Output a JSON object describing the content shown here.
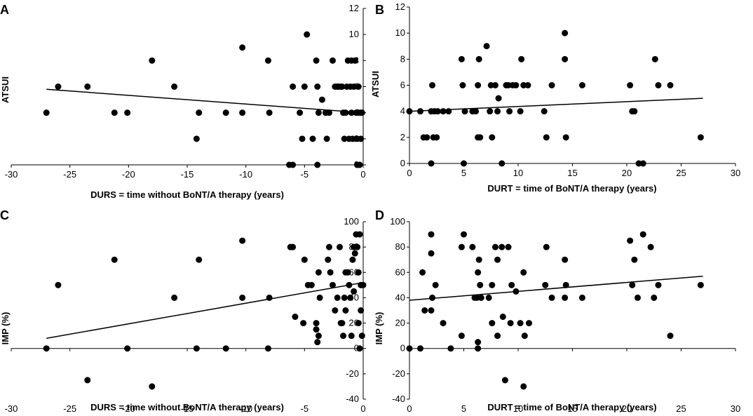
{
  "colors": {
    "marker": "#000000",
    "axis": "#000000",
    "background": "#ffffff"
  },
  "chart_data": [
    {
      "panel": "A",
      "type": "scatter",
      "xlabel": "DURS = time without BoNT/A therapy (years)",
      "ylabel": "ATSUI",
      "xlim": [
        -30,
        0
      ],
      "ylim": [
        0,
        12
      ],
      "xticks": [
        -30,
        -25,
        -20,
        -15,
        -10,
        -5,
        0
      ],
      "yticks": [
        0,
        2,
        4,
        6,
        8,
        10,
        12
      ],
      "grid": false,
      "trendline": {
        "x": [
          -27,
          0
        ],
        "y": [
          5.8,
          4.0
        ]
      },
      "points": [
        [
          -27,
          4
        ],
        [
          -26,
          6
        ],
        [
          -23.5,
          6
        ],
        [
          -21.2,
          4
        ],
        [
          -20.1,
          4
        ],
        [
          -18,
          8
        ],
        [
          -16.1,
          6
        ],
        [
          -14.2,
          2
        ],
        [
          -14,
          4
        ],
        [
          -11.7,
          4
        ],
        [
          -10.3,
          9
        ],
        [
          -10.3,
          4
        ],
        [
          -8.1,
          8
        ],
        [
          -8,
          4
        ],
        [
          -6.3,
          0
        ],
        [
          -6,
          0
        ],
        [
          -6,
          6
        ],
        [
          -5.4,
          4
        ],
        [
          -5.2,
          2
        ],
        [
          -5,
          6
        ],
        [
          -4.8,
          10
        ],
        [
          -4.3,
          2
        ],
        [
          -4,
          8
        ],
        [
          -3.9,
          6
        ],
        [
          -3.8,
          4
        ],
        [
          -3.9,
          0
        ],
        [
          -3.5,
          5
        ],
        [
          -3.2,
          4
        ],
        [
          -3.1,
          2
        ],
        [
          -2.9,
          4
        ],
        [
          -2.6,
          8
        ],
        [
          -2.4,
          6
        ],
        [
          -2.2,
          6
        ],
        [
          -2.1,
          6
        ],
        [
          -1.9,
          6
        ],
        [
          -1.8,
          6
        ],
        [
          -1.7,
          4
        ],
        [
          -1.6,
          2
        ],
        [
          -1.5,
          4
        ],
        [
          -1.4,
          6
        ],
        [
          -1.3,
          8
        ],
        [
          -1.2,
          2
        ],
        [
          -1.1,
          6
        ],
        [
          -1.0,
          8
        ],
        [
          -1.0,
          4
        ],
        [
          -0.9,
          2
        ],
        [
          -0.8,
          6
        ],
        [
          -0.7,
          8
        ],
        [
          -0.6,
          4
        ],
        [
          -0.5,
          2
        ],
        [
          -0.5,
          0
        ],
        [
          -0.4,
          6
        ],
        [
          -0.4,
          4
        ],
        [
          -0.3,
          0
        ],
        [
          -0.2,
          4
        ],
        [
          -0.2,
          2
        ],
        [
          -0.1,
          4
        ]
      ]
    },
    {
      "panel": "B",
      "type": "scatter",
      "xlabel": "DURT = time of BoNT/A therapy (years)",
      "ylabel": "ATSUI",
      "xlim": [
        0,
        30
      ],
      "ylim": [
        0,
        12
      ],
      "xticks": [
        0,
        5,
        10,
        15,
        20,
        25,
        30
      ],
      "yticks": [
        0,
        2,
        4,
        6,
        8,
        10,
        12
      ],
      "grid": false,
      "trendline": {
        "x": [
          0,
          27
        ],
        "y": [
          4.0,
          5.0
        ]
      },
      "points": [
        [
          0,
          4
        ],
        [
          1,
          4
        ],
        [
          1.3,
          2
        ],
        [
          1.6,
          2
        ],
        [
          2,
          4
        ],
        [
          2,
          0
        ],
        [
          2.1,
          6
        ],
        [
          2.2,
          2
        ],
        [
          2.3,
          4
        ],
        [
          2.5,
          2
        ],
        [
          2.6,
          4
        ],
        [
          3.1,
          4
        ],
        [
          3.6,
          4
        ],
        [
          4.8,
          8
        ],
        [
          4.9,
          6
        ],
        [
          5,
          0
        ],
        [
          5.1,
          4
        ],
        [
          5.8,
          4
        ],
        [
          6.1,
          4
        ],
        [
          6.3,
          6
        ],
        [
          6.3,
          2
        ],
        [
          6.4,
          8
        ],
        [
          6.5,
          2
        ],
        [
          7.1,
          9
        ],
        [
          7.4,
          4
        ],
        [
          7.5,
          6
        ],
        [
          7.6,
          2
        ],
        [
          7.9,
          6
        ],
        [
          8.1,
          4
        ],
        [
          8.2,
          5
        ],
        [
          8.5,
          0
        ],
        [
          8.9,
          6
        ],
        [
          9.1,
          6
        ],
        [
          9.2,
          4
        ],
        [
          9.5,
          6
        ],
        [
          9.8,
          6
        ],
        [
          10.2,
          4
        ],
        [
          10.3,
          8
        ],
        [
          10.5,
          6
        ],
        [
          10.9,
          6
        ],
        [
          12.4,
          4
        ],
        [
          12.6,
          2
        ],
        [
          13.1,
          6
        ],
        [
          14.3,
          10
        ],
        [
          14.3,
          8
        ],
        [
          14.4,
          2
        ],
        [
          15.9,
          6
        ],
        [
          20.3,
          6
        ],
        [
          20.5,
          4
        ],
        [
          20.7,
          4
        ],
        [
          21.1,
          0
        ],
        [
          21.5,
          0
        ],
        [
          22.6,
          8
        ],
        [
          22.9,
          6
        ],
        [
          24,
          6
        ],
        [
          26.8,
          2
        ]
      ]
    },
    {
      "panel": "C",
      "type": "scatter",
      "xlabel": "DURS = time without BoNT/A therapy (years)",
      "ylabel": "IMP (%)",
      "xlim": [
        -30,
        0
      ],
      "ylim": [
        -40,
        100
      ],
      "xticks": [
        -30,
        -25,
        -20,
        -15,
        -10,
        -5,
        0
      ],
      "yticks": [
        -40,
        -20,
        0,
        20,
        40,
        60,
        80,
        100
      ],
      "grid": false,
      "trendline": {
        "x": [
          -27,
          0
        ],
        "y": [
          8,
          52
        ]
      },
      "points": [
        [
          -27,
          0
        ],
        [
          -26,
          50
        ],
        [
          -23.5,
          -25
        ],
        [
          -21.2,
          70
        ],
        [
          -20.1,
          0
        ],
        [
          -18,
          -30
        ],
        [
          -16.1,
          40
        ],
        [
          -14.2,
          0
        ],
        [
          -14,
          70
        ],
        [
          -11.7,
          0
        ],
        [
          -10.3,
          85
        ],
        [
          -10.3,
          40
        ],
        [
          -8.1,
          0
        ],
        [
          -8,
          40
        ],
        [
          -6.2,
          80
        ],
        [
          -6,
          80
        ],
        [
          -5.8,
          25
        ],
        [
          -5.1,
          20
        ],
        [
          -5,
          70
        ],
        [
          -4.7,
          50
        ],
        [
          -4.4,
          50
        ],
        [
          -4,
          15
        ],
        [
          -3.8,
          60
        ],
        [
          -3.9,
          5
        ],
        [
          -3.8,
          10
        ],
        [
          -4,
          20
        ],
        [
          -3.7,
          40
        ],
        [
          -3,
          70
        ],
        [
          -2.9,
          80
        ],
        [
          -2.8,
          60
        ],
        [
          -2.6,
          50
        ],
        [
          -2.4,
          30
        ],
        [
          -2.2,
          40
        ],
        [
          -2,
          80
        ],
        [
          -1.9,
          20
        ],
        [
          -1.8,
          20
        ],
        [
          -1.7,
          10
        ],
        [
          -1.6,
          40
        ],
        [
          -1.5,
          60
        ],
        [
          -1.5,
          30
        ],
        [
          -1.3,
          60
        ],
        [
          -1.2,
          50
        ],
        [
          -1.1,
          40
        ],
        [
          -1.0,
          10
        ],
        [
          -0.9,
          70
        ],
        [
          -0.8,
          80
        ],
        [
          -0.8,
          45
        ],
        [
          -0.7,
          75
        ],
        [
          -0.6,
          90
        ],
        [
          -0.5,
          80
        ],
        [
          -0.4,
          60
        ],
        [
          -0.4,
          20
        ],
        [
          -0.3,
          90
        ],
        [
          -0.3,
          0
        ],
        [
          -0.2,
          50
        ],
        [
          -0.2,
          30
        ],
        [
          -0.1,
          10
        ],
        [
          0,
          50
        ]
      ]
    },
    {
      "panel": "D",
      "type": "scatter",
      "xlabel": "DURT = time of BoNT/A therapy (years)",
      "ylabel": "IMP (%)",
      "xlim": [
        0,
        30
      ],
      "ylim": [
        -40,
        100
      ],
      "xticks": [
        0,
        5,
        10,
        15,
        20,
        25,
        30
      ],
      "yticks": [
        -40,
        -20,
        0,
        20,
        40,
        60,
        80,
        100
      ],
      "grid": false,
      "trendline": {
        "x": [
          0,
          27
        ],
        "y": [
          38,
          57
        ]
      },
      "points": [
        [
          0,
          0
        ],
        [
          1,
          0
        ],
        [
          1.2,
          60
        ],
        [
          1.4,
          30
        ],
        [
          2,
          30
        ],
        [
          2,
          90
        ],
        [
          2,
          75
        ],
        [
          2.1,
          40
        ],
        [
          2.4,
          50
        ],
        [
          3.1,
          20
        ],
        [
          3.8,
          0
        ],
        [
          4.8,
          10
        ],
        [
          4.8,
          80
        ],
        [
          5,
          90
        ],
        [
          5.8,
          80
        ],
        [
          6,
          40
        ],
        [
          6.2,
          40
        ],
        [
          6.3,
          5
        ],
        [
          6.3,
          0
        ],
        [
          6.3,
          60
        ],
        [
          6.4,
          70
        ],
        [
          6.5,
          50
        ],
        [
          6.6,
          40
        ],
        [
          7.3,
          40
        ],
        [
          7.6,
          50
        ],
        [
          7.6,
          20
        ],
        [
          7.9,
          80
        ],
        [
          8.1,
          10
        ],
        [
          8.1,
          70
        ],
        [
          8.5,
          80
        ],
        [
          8.6,
          25
        ],
        [
          8.8,
          -25
        ],
        [
          9.1,
          80
        ],
        [
          9.3,
          20
        ],
        [
          9.4,
          50
        ],
        [
          9.8,
          45
        ],
        [
          10.2,
          20
        ],
        [
          10.5,
          -30
        ],
        [
          10.5,
          60
        ],
        [
          10.6,
          10
        ],
        [
          11,
          20
        ],
        [
          12.6,
          80
        ],
        [
          12.5,
          50
        ],
        [
          13.1,
          40
        ],
        [
          14.3,
          70
        ],
        [
          14.3,
          40
        ],
        [
          14.4,
          50
        ],
        [
          15.9,
          40
        ],
        [
          20.3,
          85
        ],
        [
          20.5,
          50
        ],
        [
          20.7,
          70
        ],
        [
          21,
          40
        ],
        [
          21.5,
          90
        ],
        [
          22.2,
          80
        ],
        [
          22.5,
          40
        ],
        [
          22.9,
          50
        ],
        [
          24,
          10
        ],
        [
          26.8,
          50
        ]
      ]
    }
  ]
}
